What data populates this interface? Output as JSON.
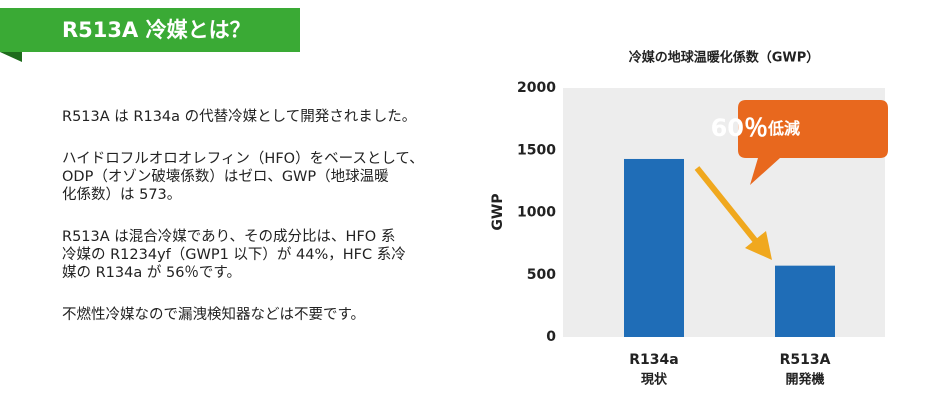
{
  "header": {
    "title": "R513A 冷媒とは？"
  },
  "paragraphs": [
    [
      "R513A は R134a の代替冷媒として開発されました。"
    ],
    [
      "ハイドロフルオロオレフィン（HFO）をベースとして、",
      "ODP（オゾン破壊係数）はゼロ、GWP（地球温暖",
      "化係数）は 573。"
    ],
    [
      "R513A は混合冷媒であり、その成分比は、HFO 系",
      "冷媒の R1234yf（GWP1 以下）が 44%，HFC 系冷",
      "媒の R134a が 56％です。"
    ],
    [
      "不燃性冷媒なので漏洩検知器などは不要です。"
    ]
  ],
  "chart_data": {
    "type": "bar",
    "title": "冷媒の地球温暖化係数（GWP）",
    "y_label": "GWP",
    "categories": [
      "R134a",
      "R513A"
    ],
    "category_sublabels": [
      "現状",
      "開発機"
    ],
    "values": [
      1430,
      573
    ],
    "color": "#1f6db7",
    "ylim": [
      0,
      2000
    ],
    "yticks": [
      0,
      500,
      1000,
      1500,
      2000
    ],
    "annotation": {
      "value_text": "60％",
      "text": "低減"
    }
  }
}
